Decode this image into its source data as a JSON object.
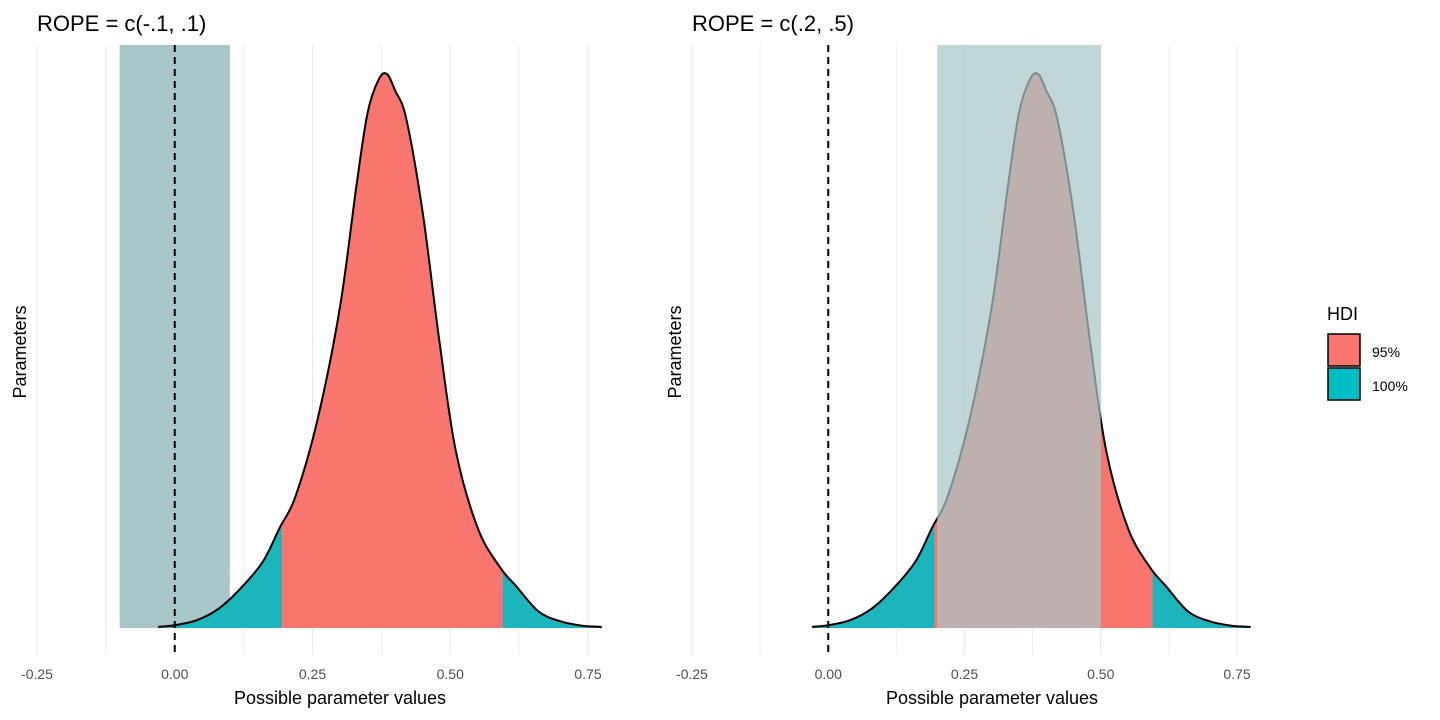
{
  "chart_data": [
    {
      "type": "area",
      "title": "ROPE = c(-.1, .1)",
      "xlabel": "Possible parameter values",
      "ylabel": "Parameters",
      "xlim": [
        -0.3,
        0.78
      ],
      "xticks": [
        -0.25,
        0,
        0.25,
        0.5,
        0.75
      ],
      "xtick_labels": [
        "-0.25",
        "0.00",
        "0.25",
        "0.50",
        "0.75"
      ],
      "grid": true,
      "rope": [
        -0.1,
        0.1
      ],
      "reference_line": 0,
      "hdi_95": [
        0.195,
        0.595
      ],
      "density": {
        "x": [
          -0.03,
          0.0,
          0.04,
          0.08,
          0.12,
          0.16,
          0.19,
          0.22,
          0.26,
          0.3,
          0.33,
          0.35,
          0.37,
          0.385,
          0.4,
          0.42,
          0.45,
          0.48,
          0.51,
          0.55,
          0.59,
          0.62,
          0.66,
          0.7,
          0.74,
          0.775
        ],
        "y": [
          0.002,
          0.005,
          0.014,
          0.035,
          0.072,
          0.12,
          0.18,
          0.24,
          0.38,
          0.58,
          0.8,
          0.93,
          0.99,
          1.0,
          0.97,
          0.92,
          0.75,
          0.52,
          0.32,
          0.18,
          0.11,
          0.075,
          0.03,
          0.012,
          0.004,
          0.002
        ]
      }
    },
    {
      "type": "area",
      "title": "ROPE = c(.2, .5)",
      "xlabel": "Possible parameter values",
      "ylabel": "Parameters",
      "xlim": [
        -0.3,
        0.78
      ],
      "xticks": [
        -0.25,
        0,
        0.25,
        0.5,
        0.75
      ],
      "xtick_labels": [
        "-0.25",
        "0.00",
        "0.25",
        "0.50",
        "0.75"
      ],
      "grid": true,
      "rope": [
        0.2,
        0.5
      ],
      "reference_line": 0,
      "hdi_95": [
        0.195,
        0.595
      ],
      "density": {
        "x": [
          -0.03,
          0.0,
          0.04,
          0.08,
          0.12,
          0.16,
          0.19,
          0.22,
          0.26,
          0.3,
          0.33,
          0.35,
          0.37,
          0.385,
          0.4,
          0.42,
          0.45,
          0.48,
          0.51,
          0.55,
          0.59,
          0.62,
          0.66,
          0.7,
          0.74,
          0.775
        ],
        "y": [
          0.002,
          0.005,
          0.014,
          0.035,
          0.072,
          0.12,
          0.18,
          0.24,
          0.38,
          0.58,
          0.8,
          0.93,
          0.99,
          1.0,
          0.97,
          0.92,
          0.75,
          0.52,
          0.32,
          0.18,
          0.11,
          0.075,
          0.03,
          0.012,
          0.004,
          0.002
        ]
      }
    }
  ],
  "legend": {
    "title": "HDI",
    "placement": "right",
    "items": [
      {
        "label": "95%",
        "color": "#F8766D"
      },
      {
        "label": "100%",
        "color": "#00BFC4"
      }
    ]
  },
  "colors": {
    "hdi_95": "#F8766D",
    "hdi_100": "#1CB5BB",
    "rope": "#A8C6C8",
    "grid": "#EBEBEB"
  }
}
